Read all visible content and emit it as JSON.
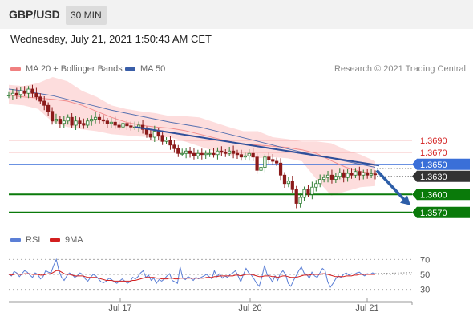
{
  "header": {
    "symbol": "GBP/USD",
    "timeframe": "30 MIN"
  },
  "timestamp": "Wednesday, July 21, 2021 1:50:43 AM CET",
  "legend": {
    "bb_label": "MA 20 + Bollinger Bands",
    "ma50_label": "MA 50",
    "rsi_label": "RSI",
    "rsi_ma_label": "9MA",
    "credit": "Research © 2021 Trading Central"
  },
  "colors": {
    "bollinger_fill": "#fcd2d2",
    "ma20": "#f08080",
    "ma50": "#3a5ea8",
    "candle_up": "#2e7d32",
    "candle_down": "#8b1a1a",
    "trendline": "#2f4f9a",
    "support": "#0a7a0a",
    "resistance": "#f08080",
    "pivot": "#3a6fd8",
    "current": "#333333",
    "rsi": "#5b7fd6",
    "rsi_ma": "#d31f1f",
    "arrow": "#2d5ea8"
  },
  "chart_data": [
    {
      "type": "line",
      "title": "",
      "ylim": [
        1.3555,
        1.3795
      ],
      "x_tick_labels": [
        "Jul 17",
        "Jul 20",
        "Jul 21"
      ],
      "series": [
        {
          "name": "MA 20 + Bollinger Bands",
          "kind": "ma20",
          "values": [
            1.3765,
            1.3762,
            1.376,
            1.3758,
            1.3755,
            1.3748,
            1.3738,
            1.3728,
            1.372,
            1.3715,
            1.3712,
            1.371,
            1.3706,
            1.37,
            1.3694,
            1.3688,
            1.3684,
            1.3682,
            1.368,
            1.3678,
            1.3674,
            1.3668,
            1.3656,
            1.3645,
            1.3638,
            1.3634
          ]
        },
        {
          "name": "MA 50",
          "kind": "ma50",
          "values": [
            1.3775,
            1.3772,
            1.3768,
            1.3764,
            1.3758,
            1.3752,
            1.3746,
            1.374,
            1.3735,
            1.373,
            1.3725,
            1.372,
            1.3716,
            1.3712,
            1.3706,
            1.37,
            1.3694,
            1.3688,
            1.3682,
            1.3676,
            1.367,
            1.3665,
            1.366,
            1.3655,
            1.365,
            1.3645
          ]
        }
      ],
      "price_series": [
        1.3765,
        1.3768,
        1.3766,
        1.3772,
        1.3768,
        1.3775,
        1.3768,
        1.3762,
        1.3755,
        1.3748,
        1.3738,
        1.3722,
        1.3725,
        1.3718,
        1.3722,
        1.3728,
        1.3715,
        1.3722,
        1.3718,
        1.3715,
        1.3722,
        1.3725,
        1.3728,
        1.3724,
        1.3722,
        1.3718,
        1.372,
        1.3715,
        1.3712,
        1.3718,
        1.3714,
        1.3712,
        1.3712,
        1.3715,
        1.3708,
        1.37,
        1.3695,
        1.3705,
        1.3698,
        1.3688,
        1.369,
        1.3682,
        1.3676,
        1.3668,
        1.3668,
        1.3672,
        1.3668,
        1.3664,
        1.3668,
        1.3666,
        1.3668,
        1.3668,
        1.3666,
        1.3672,
        1.367,
        1.3668,
        1.3672,
        1.3668,
        1.3666,
        1.3662,
        1.3664,
        1.3668,
        1.3662,
        1.364,
        1.3645,
        1.3662,
        1.3658,
        1.3655,
        1.3652,
        1.3632,
        1.3618,
        1.3622,
        1.3608,
        1.3585,
        1.3595,
        1.3608,
        1.36,
        1.3612,
        1.3618,
        1.3625,
        1.3628,
        1.3632,
        1.3625,
        1.363,
        1.3636,
        1.3628,
        1.3635,
        1.3632,
        1.3638,
        1.3632,
        1.3636,
        1.3632,
        1.3634,
        1.3633
      ],
      "bollinger_upper": [
        1.3782,
        1.378,
        1.3785,
        1.3795,
        1.3788,
        1.3772,
        1.3762,
        1.3748,
        1.3742,
        1.3738,
        1.3735,
        1.373,
        1.373,
        1.3728,
        1.372,
        1.3712,
        1.3705,
        1.3705,
        1.3695,
        1.3692,
        1.3688,
        1.3688,
        1.3685,
        1.3674,
        1.3666,
        1.3655
      ],
      "bollinger_lower": [
        1.375,
        1.3748,
        1.3742,
        1.372,
        1.3712,
        1.3708,
        1.3705,
        1.37,
        1.3698,
        1.3696,
        1.3695,
        1.3695,
        1.3688,
        1.368,
        1.3672,
        1.3665,
        1.3665,
        1.366,
        1.3662,
        1.366,
        1.3655,
        1.3625,
        1.3598,
        1.3605,
        1.3612,
        1.3614
      ],
      "levels": [
        {
          "value": 1.369,
          "label": "1.3690",
          "kind": "resistance"
        },
        {
          "value": 1.367,
          "label": "1.3670",
          "kind": "resistance"
        },
        {
          "value": 1.365,
          "label": "1.3650",
          "kind": "pivot"
        },
        {
          "value": 1.363,
          "label": "1.3630",
          "kind": "current"
        },
        {
          "value": 1.36,
          "label": "1.3600",
          "kind": "support"
        },
        {
          "value": 1.357,
          "label": "1.3570",
          "kind": "support"
        }
      ],
      "trendline": {
        "from": {
          "index": 32,
          "value": 1.3712
        },
        "to": {
          "index": 94,
          "value": 1.3648
        }
      },
      "forecast_arrow": {
        "from": 1.364,
        "to": 1.3582
      }
    },
    {
      "type": "line",
      "title": "",
      "ylim": [
        20,
        80
      ],
      "y_tick_labels": [
        "70",
        "50",
        "30"
      ],
      "y_ticks": [
        70,
        50,
        30
      ],
      "series": [
        {
          "name": "RSI",
          "values": [
            50,
            48,
            54,
            52,
            47,
            51,
            55,
            53,
            49,
            46,
            52,
            50,
            44,
            47,
            55,
            53,
            52,
            62,
            70,
            55,
            46,
            42,
            48,
            52,
            50,
            46,
            48,
            52,
            50,
            44,
            41,
            46,
            50,
            48,
            44,
            40,
            39,
            41,
            45,
            43,
            40,
            38,
            41,
            44,
            41,
            38,
            40,
            46,
            44,
            47,
            52,
            55,
            46,
            49,
            42,
            45,
            38,
            43,
            41,
            44,
            48,
            51,
            42,
            40,
            38,
            60,
            45,
            43,
            47,
            45,
            42,
            46,
            44,
            46,
            48,
            50,
            47,
            44,
            55,
            47,
            51,
            45,
            48,
            46,
            50,
            52,
            55,
            48,
            40,
            50,
            58,
            52,
            49,
            44,
            38,
            34,
            46,
            62,
            50,
            46,
            40,
            48,
            42,
            51,
            55,
            50,
            38,
            34,
            42,
            48,
            55,
            60,
            52,
            50,
            45,
            53,
            48,
            46,
            52,
            58,
            55,
            40,
            33,
            38,
            44,
            48,
            46,
            50,
            52,
            49,
            51,
            50,
            52,
            53,
            50,
            48,
            51,
            50,
            52,
            51
          ]
        },
        {
          "name": "9MA",
          "values": [
            50,
            49,
            50,
            51,
            50,
            50,
            51,
            51,
            51,
            50,
            50,
            50,
            49,
            49,
            50,
            51,
            51,
            53,
            55,
            55,
            53,
            51,
            50,
            50,
            49,
            48,
            48,
            48,
            48,
            47,
            46,
            46,
            46,
            46,
            45,
            44,
            43,
            42,
            42,
            42,
            41,
            41,
            41,
            41,
            41,
            41,
            41,
            42,
            42,
            43,
            44,
            45,
            46,
            46,
            46,
            46,
            45,
            45,
            44,
            44,
            44,
            45,
            45,
            44,
            44,
            45,
            45,
            45,
            45,
            45,
            45,
            45,
            45,
            45,
            45,
            46,
            46,
            46,
            47,
            47,
            48,
            48,
            48,
            48,
            48,
            48,
            49,
            49,
            48,
            49,
            50,
            50,
            50,
            49,
            48,
            47,
            47,
            48,
            48,
            48,
            47,
            47,
            46,
            47,
            48,
            48,
            47,
            46,
            46,
            46,
            47,
            48,
            49,
            49,
            49,
            50,
            50,
            50,
            50,
            51,
            51,
            50,
            49,
            48,
            47,
            47,
            47,
            47,
            48,
            48,
            48,
            49,
            49,
            50,
            50,
            50,
            50,
            50,
            50,
            50
          ]
        }
      ]
    }
  ]
}
